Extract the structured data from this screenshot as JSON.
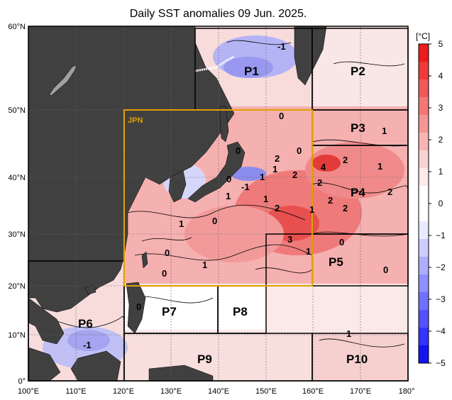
{
  "title": "Daily SST anomalies 09 Jun. 2025.",
  "x_ticks": [
    "100°E",
    "110°E",
    "120°E",
    "130°E",
    "140°E",
    "150°E",
    "160°E",
    "170°E",
    "180°"
  ],
  "y_ticks": [
    "60°N",
    "50°N",
    "40°N",
    "30°N",
    "20°N",
    "10°N",
    "0°"
  ],
  "colorbar": {
    "unit": "[°C]",
    "ticks": [
      "5",
      "4",
      "3",
      "2",
      "1",
      "0",
      "−1",
      "−2",
      "−3",
      "−4",
      "−5"
    ],
    "colors": [
      "#ee1c1c",
      "#f03a3a",
      "#f25858",
      "#f47777",
      "#f69595",
      "#f8b3b3",
      "#fad2d2",
      "#fde9e9",
      "#ffffff",
      "#ffffff",
      "#eaeaff",
      "#ccccff",
      "#adadff",
      "#8f8fff",
      "#7070ff",
      "#5252ff",
      "#3333ff",
      "#1414f0"
    ]
  },
  "jpn_label": "JPN",
  "regions": [
    "P1",
    "P2",
    "P3",
    "P4",
    "P5",
    "P6",
    "P7",
    "P8",
    "P9",
    "P10"
  ],
  "contour_labels": [
    "-1",
    "0",
    "1",
    "0",
    "1",
    "1",
    "0",
    "2",
    "4",
    "2",
    "1",
    "2",
    "-1",
    "1",
    "2",
    "2",
    "2",
    "2",
    "0",
    "1",
    "0",
    "0",
    "1",
    "0",
    "1",
    "3",
    "1",
    "0",
    "0",
    "1",
    "-1",
    "0",
    "2",
    "1"
  ],
  "colors": {
    "land": "#404040",
    "jpn_box": "#e0a000",
    "region_box": "#000000"
  }
}
